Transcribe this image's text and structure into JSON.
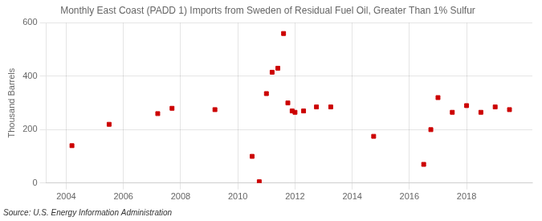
{
  "chart_data": {
    "type": "scatter",
    "title": "Monthly East Coast (PADD 1) Imports from Sweden of Residual Fuel Oil, Greater Than 1% Sulfur",
    "ylabel": "Thousand Barrels",
    "annotation": "Source: U.S. Energy Information Administration",
    "x": [
      2004.2,
      2005.5,
      2007.2,
      2007.7,
      2009.2,
      2010.5,
      2010.75,
      2011.0,
      2011.2,
      2011.4,
      2011.6,
      2011.75,
      2011.9,
      2012.0,
      2012.3,
      2012.75,
      2013.25,
      2014.75,
      2016.5,
      2016.75,
      2017.0,
      2017.5,
      2018.0,
      2018.5,
      2019.0,
      2019.5
    ],
    "values": [
      140,
      220,
      260,
      280,
      275,
      100,
      5,
      335,
      415,
      430,
      560,
      300,
      270,
      265,
      270,
      285,
      285,
      175,
      70,
      200,
      320,
      265,
      290,
      265,
      285,
      275
    ],
    "color": "#cc0000",
    "marker": "square",
    "xlim": [
      2003.3,
      2020.3
    ],
    "ylim": [
      0,
      600
    ],
    "xticks": [
      2004,
      2006,
      2008,
      2010,
      2012,
      2014,
      2016,
      2018
    ],
    "yticks": [
      0,
      200,
      400,
      600
    ],
    "grid": true
  }
}
